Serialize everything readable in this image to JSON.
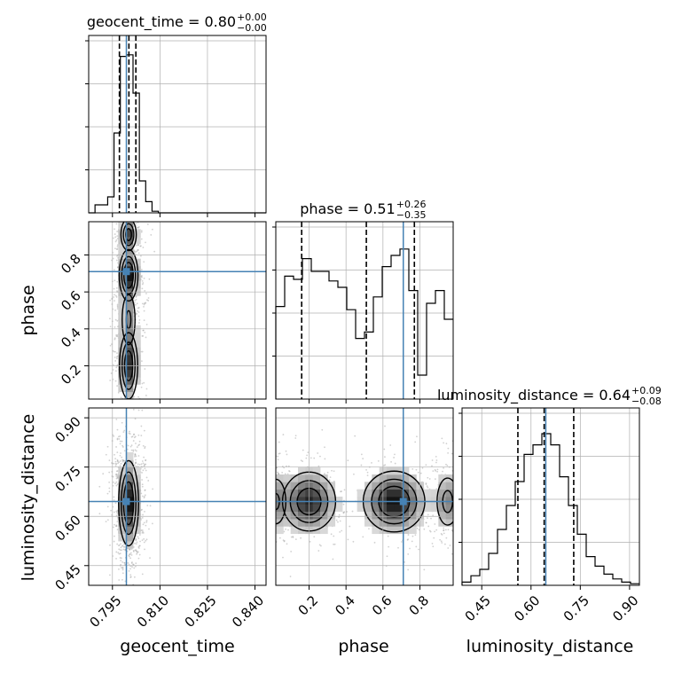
{
  "chart_data": {
    "type": "corner",
    "parameters": [
      "geocent_time",
      "phase",
      "luminosity_distance"
    ],
    "axis_labels": {
      "geocent_time": "geocent_time",
      "phase": "phase",
      "luminosity_distance": "luminosity_distance"
    },
    "titles": {
      "geocent_time": {
        "prefix": "geocent_time = ",
        "median": "0.80",
        "plus": "+0.00",
        "minus": "−0.00"
      },
      "phase": {
        "prefix": "phase = ",
        "median": "0.51",
        "plus": "+0.26",
        "minus": "−0.35"
      },
      "luminosity_distance": {
        "prefix": "luminosity_distance = ",
        "median": "0.64",
        "plus": "+0.09",
        "minus": "−0.08"
      }
    },
    "ranges": {
      "geocent_time": [
        0.7875,
        0.8435
      ],
      "phase": [
        0.02,
        0.98
      ],
      "luminosity_distance": [
        0.39,
        0.93
      ]
    },
    "ticks": {
      "geocent_time": {
        "values": [
          0.795,
          0.81,
          0.825,
          0.84
        ],
        "labels": [
          "0.795",
          "0.810",
          "0.825",
          "0.840"
        ]
      },
      "phase": {
        "values": [
          0.2,
          0.4,
          0.6,
          0.8
        ],
        "labels": [
          "0.2",
          "0.4",
          "0.6",
          "0.8"
        ]
      },
      "luminosity_distance": {
        "values": [
          0.45,
          0.6,
          0.75,
          0.9
        ],
        "labels": [
          "0.45",
          "0.60",
          "0.75",
          "0.90"
        ]
      }
    },
    "truths": {
      "geocent_time": 0.7994,
      "phase": 0.71,
      "luminosity_distance": 0.645
    },
    "quantiles": {
      "geocent_time": [
        0.7972,
        0.8002,
        0.8024
      ],
      "phase": [
        0.16,
        0.51,
        0.77
      ],
      "luminosity_distance": [
        0.56,
        0.64,
        0.73
      ]
    },
    "histograms": {
      "geocent_time": {
        "edges": [
          0.7875,
          0.7895,
          0.7915,
          0.7935,
          0.7955,
          0.7975,
          0.7995,
          0.8015,
          0.8035,
          0.8055,
          0.8075,
          0.8095,
          0.8435
        ],
        "counts": [
          0,
          0.05,
          0.05,
          0.1,
          0.5,
          0.98,
          0.99,
          0.75,
          0.2,
          0.07,
          0.01,
          0
        ]
      },
      "phase": {
        "edges": [
          0.02,
          0.068,
          0.116,
          0.164,
          0.212,
          0.26,
          0.308,
          0.356,
          0.404,
          0.452,
          0.5,
          0.548,
          0.596,
          0.644,
          0.692,
          0.74,
          0.788,
          0.836,
          0.884,
          0.932,
          0.98
        ],
        "counts": [
          0.58,
          0.77,
          0.75,
          0.88,
          0.8,
          0.8,
          0.74,
          0.7,
          0.56,
          0.38,
          0.42,
          0.64,
          0.83,
          0.9,
          0.94,
          0.68,
          0.15,
          0.6,
          0.68,
          0.5
        ]
      },
      "luminosity_distance": {
        "edges": [
          0.39,
          0.417,
          0.444,
          0.471,
          0.498,
          0.525,
          0.552,
          0.579,
          0.606,
          0.633,
          0.66,
          0.687,
          0.714,
          0.741,
          0.768,
          0.795,
          0.822,
          0.849,
          0.876,
          0.903,
          0.93
        ],
        "counts": [
          0.02,
          0.06,
          0.1,
          0.2,
          0.35,
          0.5,
          0.65,
          0.82,
          0.88,
          0.95,
          0.88,
          0.68,
          0.5,
          0.32,
          0.18,
          0.12,
          0.07,
          0.04,
          0.02,
          0.01
        ]
      }
    },
    "density_blobs": {
      "phase_vs_geocent_time": [
        {
          "x": 0.8001,
          "y": 0.91,
          "sx": 0.0014,
          "sy": 0.05,
          "w": 0.8
        },
        {
          "x": 0.8001,
          "y": 0.69,
          "sx": 0.0016,
          "sy": 0.075,
          "w": 1.0
        },
        {
          "x": 0.8001,
          "y": 0.2,
          "sx": 0.0016,
          "sy": 0.1,
          "w": 0.9
        },
        {
          "x": 0.8001,
          "y": 0.45,
          "sx": 0.0015,
          "sy": 0.1,
          "w": 0.45
        }
      ],
      "luminosity_distance_vs_geocent_time": [
        {
          "x": 0.8001,
          "y": 0.64,
          "sx": 0.0017,
          "sy": 0.07,
          "w": 1.0
        }
      ],
      "luminosity_distance_vs_phase": [
        {
          "x": 0.2,
          "y": 0.645,
          "sx": 0.08,
          "sy": 0.05,
          "w": 0.9
        },
        {
          "x": 0.66,
          "y": 0.645,
          "sx": 0.09,
          "sy": 0.05,
          "w": 1.0
        },
        {
          "x": 0.95,
          "y": 0.645,
          "sx": 0.04,
          "sy": 0.05,
          "w": 0.5
        },
        {
          "x": 0.02,
          "y": 0.645,
          "sx": 0.04,
          "sy": 0.05,
          "w": 0.45
        }
      ]
    },
    "contour_levels": [
      0.18,
      0.4,
      0.65
    ],
    "colors": {
      "hist": "#000000",
      "truth": "#4682b4",
      "grid": "#b0b0b0",
      "quantile": "#000000"
    },
    "grid": true
  }
}
